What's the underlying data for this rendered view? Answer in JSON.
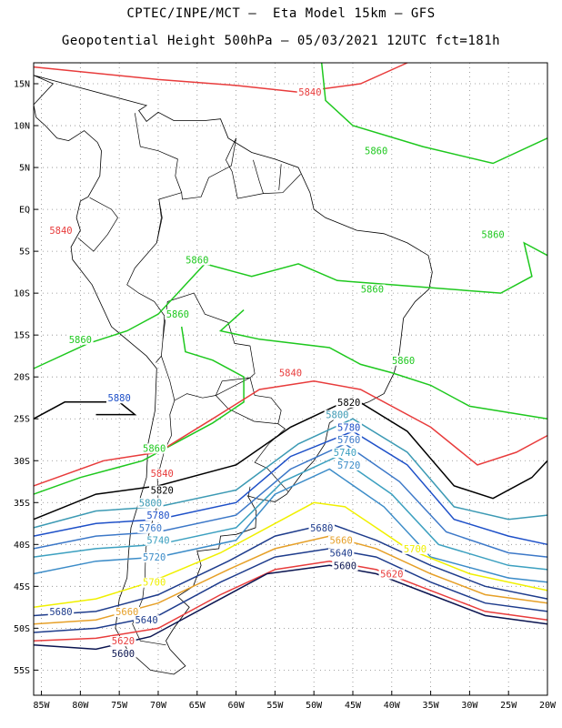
{
  "title": {
    "line1": "CPTEC/INPE/MCT –  Eta Model 15km – GFS",
    "line2": "Geopotential Height 500hPa – 05/03/2021 12UTC fct=181h"
  },
  "axes": {
    "lat_labels": [
      "15N",
      "10N",
      "5N",
      "EQ",
      "5S",
      "10S",
      "15S",
      "20S",
      "25S",
      "30S",
      "35S",
      "40S",
      "45S",
      "50S",
      "55S"
    ],
    "lon_labels": [
      "85W",
      "80W",
      "75W",
      "70W",
      "65W",
      "60W",
      "55W",
      "50W",
      "45W",
      "40W",
      "35W",
      "30W",
      "25W",
      "20W"
    ],
    "lat_range": [
      17.5,
      -58
    ],
    "lon_range": [
      -86,
      -20
    ],
    "grid": "dotted"
  },
  "contours": [
    {
      "value": "5860",
      "color": "#1ec81e"
    },
    {
      "value": "5840",
      "color": "#e83c3c"
    },
    {
      "value": "5820",
      "color": "#000000"
    },
    {
      "value": "5800",
      "color": "#3c9ab4"
    },
    {
      "value": "5780",
      "color": "#1e50c8"
    },
    {
      "value": "5760",
      "color": "#3c78c8"
    },
    {
      "value": "5740",
      "color": "#3ca0c0"
    },
    {
      "value": "5720",
      "color": "#3c8cc8"
    },
    {
      "value": "5700",
      "color": "#f0f000"
    },
    {
      "value": "5680",
      "color": "#1e3c8c"
    },
    {
      "value": "5660",
      "color": "#e6a028"
    },
    {
      "value": "5640",
      "color": "#1e3c8c"
    },
    {
      "value": "5620",
      "color": "#e83c3c"
    },
    {
      "value": "5600",
      "color": "#0a1450"
    }
  ],
  "contour_labels": [
    {
      "text": "5840",
      "lon": -50.5,
      "lat": 14.0,
      "color": "#e83c3c"
    },
    {
      "text": "5860",
      "lon": -42.0,
      "lat": 7.0,
      "color": "#1ec81e"
    },
    {
      "text": "5860",
      "lon": -27.0,
      "lat": -3.0,
      "color": "#1ec81e"
    },
    {
      "text": "5840",
      "lon": -82.5,
      "lat": -2.5,
      "color": "#e83c3c"
    },
    {
      "text": "5860",
      "lon": -65.0,
      "lat": -6.0,
      "color": "#1ec81e"
    },
    {
      "text": "5860",
      "lon": -42.5,
      "lat": -9.5,
      "color": "#1ec81e"
    },
    {
      "text": "5860",
      "lon": -67.5,
      "lat": -12.5,
      "color": "#1ec81e"
    },
    {
      "text": "5860",
      "lon": -80.0,
      "lat": -15.5,
      "color": "#1ec81e"
    },
    {
      "text": "5860",
      "lon": -38.5,
      "lat": -18.0,
      "color": "#1ec81e"
    },
    {
      "text": "5840",
      "lon": -53.0,
      "lat": -19.5,
      "color": "#e83c3c"
    },
    {
      "text": "5820",
      "lon": -45.5,
      "lat": -23.0,
      "color": "#000000"
    },
    {
      "text": "5880",
      "lon": -75.0,
      "lat": -22.5,
      "color": "#1e50c8"
    },
    {
      "text": "5800",
      "lon": -47.0,
      "lat": -24.5,
      "color": "#3c9ab4"
    },
    {
      "text": "5780",
      "lon": -45.5,
      "lat": -26.0,
      "color": "#1e50c8"
    },
    {
      "text": "5760",
      "lon": -45.5,
      "lat": -27.5,
      "color": "#3c78c8"
    },
    {
      "text": "5740",
      "lon": -46.0,
      "lat": -29.0,
      "color": "#3ca0c0"
    },
    {
      "text": "5720",
      "lon": -45.5,
      "lat": -30.5,
      "color": "#3c8cc8"
    },
    {
      "text": "5860",
      "lon": -70.5,
      "lat": -28.5,
      "color": "#1ec81e"
    },
    {
      "text": "5840",
      "lon": -69.5,
      "lat": -31.5,
      "color": "#e83c3c"
    },
    {
      "text": "5820",
      "lon": -69.5,
      "lat": -33.5,
      "color": "#000000"
    },
    {
      "text": "5800",
      "lon": -71.0,
      "lat": -35.0,
      "color": "#3c9ab4"
    },
    {
      "text": "5780",
      "lon": -70.0,
      "lat": -36.5,
      "color": "#1e50c8"
    },
    {
      "text": "5760",
      "lon": -71.0,
      "lat": -38.0,
      "color": "#3c78c8"
    },
    {
      "text": "5740",
      "lon": -70.0,
      "lat": -39.5,
      "color": "#3ca0c0"
    },
    {
      "text": "5720",
      "lon": -70.5,
      "lat": -41.5,
      "color": "#3c8cc8"
    },
    {
      "text": "5680",
      "lon": -49.0,
      "lat": -38.0,
      "color": "#1e3c8c"
    },
    {
      "text": "5660",
      "lon": -46.5,
      "lat": -39.5,
      "color": "#e6a028"
    },
    {
      "text": "5640",
      "lon": -46.5,
      "lat": -41.0,
      "color": "#1e3c8c"
    },
    {
      "text": "5600",
      "lon": -46.0,
      "lat": -42.5,
      "color": "#0a1450"
    },
    {
      "text": "5700",
      "lon": -37.0,
      "lat": -40.5,
      "color": "#f0f000"
    },
    {
      "text": "5620",
      "lon": -40.0,
      "lat": -43.5,
      "color": "#e83c3c"
    },
    {
      "text": "5700",
      "lon": -70.5,
      "lat": -44.5,
      "color": "#f0f000"
    },
    {
      "text": "5680",
      "lon": -82.5,
      "lat": -48.0,
      "color": "#1e3c8c"
    },
    {
      "text": "5660",
      "lon": -74.0,
      "lat": -48.0,
      "color": "#e6a028"
    },
    {
      "text": "5640",
      "lon": -71.5,
      "lat": -49.0,
      "color": "#1e3c8c"
    },
    {
      "text": "5620",
      "lon": -74.5,
      "lat": -51.5,
      "color": "#e83c3c"
    },
    {
      "text": "5600",
      "lon": -74.5,
      "lat": -53.0,
      "color": "#0a1450"
    }
  ]
}
